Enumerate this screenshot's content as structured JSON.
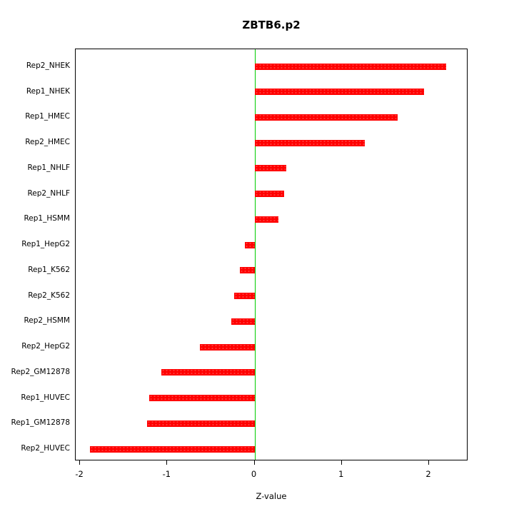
{
  "title": "ZBTB6.p2",
  "chart_data": {
    "type": "bar",
    "orientation": "horizontal",
    "title": "ZBTB6.p2",
    "xlabel": "Z-value",
    "ylabel": "",
    "categories": [
      "Rep2_NHEK",
      "Rep1_NHEK",
      "Rep1_HMEC",
      "Rep2_HMEC",
      "Rep1_NHLF",
      "Rep2_NHLF",
      "Rep1_HSMM",
      "Rep1_HepG2",
      "Rep1_K562",
      "Rep2_K562",
      "Rep2_HSMM",
      "Rep2_HepG2",
      "Rep2_GM12878",
      "Rep1_HUVEC",
      "Rep1_GM12878",
      "Rep2_HUVEC"
    ],
    "values": [
      2.2,
      1.94,
      1.64,
      1.26,
      0.36,
      0.34,
      0.27,
      -0.11,
      -0.17,
      -0.23,
      -0.27,
      -0.63,
      -1.07,
      -1.21,
      -1.23,
      -1.89
    ],
    "xlim": [
      -2.05,
      2.45
    ],
    "xticks": [
      -2,
      -1,
      0,
      1,
      2
    ],
    "bar_color": "#ff0000",
    "zero_line_color": "#00cc00",
    "border_color": "#000000",
    "grid": false,
    "legend": false
  }
}
